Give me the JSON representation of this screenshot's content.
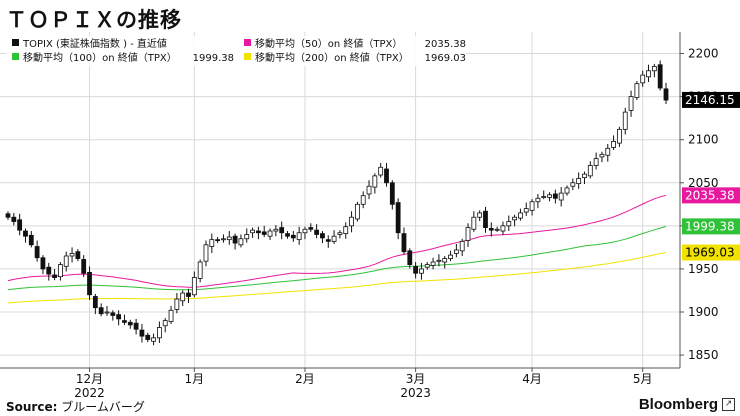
{
  "page": {
    "title": "ＴＯＰＩＸの推移",
    "source_label": "Source:",
    "source_text": "ブルームバーグ",
    "brand": "Bloomberg"
  },
  "chart_data": {
    "type": "candlestick",
    "title": "ＴＯＰＩＸの推移",
    "ylim": [
      1835,
      2225
    ],
    "yticks": [
      1850,
      1900,
      1950,
      2000,
      2050,
      2100,
      2150,
      2200
    ],
    "grid": true,
    "x_ticks": [
      {
        "label": "12月",
        "sub": "2022",
        "index": 14
      },
      {
        "label": "1月",
        "sub": "",
        "index": 32
      },
      {
        "label": "2月",
        "sub": "",
        "index": 51
      },
      {
        "label": "3月",
        "sub": "2023",
        "index": 70
      },
      {
        "label": "4月",
        "sub": "",
        "index": 90
      },
      {
        "label": "5月",
        "sub": "",
        "index": 109
      }
    ],
    "legend": [
      {
        "name": "TOPIX (東証株価指数 ) - 直近値",
        "value": "",
        "color": "#111111"
      },
      {
        "name": "移動平均（50）on 終値（TPX）",
        "value": "2035.38",
        "color": "#e8199f"
      },
      {
        "name": "移動平均（100）on 終値（TPX）",
        "value": "1999.38",
        "color": "#2fc238"
      },
      {
        "name": "移動平均（200）on 終値（TPX）",
        "value": "1969.03",
        "color": "#f2e200"
      }
    ],
    "last_values": [
      {
        "label": "2146.15",
        "value": 2146.15,
        "bg": "#000000",
        "fg": "#ffffff"
      },
      {
        "label": "2035.38",
        "value": 2035.38,
        "bg": "#e8199f",
        "fg": "#ffffff"
      },
      {
        "label": "1999.38",
        "value": 1999.38,
        "bg": "#2fc238",
        "fg": "#ffffff"
      },
      {
        "label": "1969.03",
        "value": 1969.03,
        "bg": "#f2e200",
        "fg": "#000000"
      }
    ],
    "closes": [
      2010,
      2005,
      1995,
      1988,
      1978,
      1963,
      1950,
      1944,
      1940,
      1955,
      1965,
      1968,
      1962,
      1945,
      1920,
      1905,
      1898,
      1900,
      1896,
      1892,
      1888,
      1885,
      1880,
      1872,
      1868,
      1870,
      1882,
      1890,
      1902,
      1915,
      1922,
      1918,
      1940,
      1958,
      1978,
      1984,
      1983,
      1985,
      1987,
      1980,
      1985,
      1990,
      1995,
      1992,
      1990,
      1994,
      1996,
      1992,
      1988,
      1986,
      1992,
      1996,
      1996,
      1990,
      1986,
      1982,
      1988,
      1992,
      1999,
      2010,
      2025,
      2035,
      2046,
      2058,
      2068,
      2050,
      2025,
      1992,
      1970,
      1955,
      1945,
      1950,
      1955,
      1958,
      1960,
      1962,
      1966,
      1972,
      1982,
      1998,
      2010,
      2015,
      1998,
      1995,
      1996,
      2000,
      2005,
      2010,
      2015,
      2020,
      2028,
      2032,
      2034,
      2036,
      2032,
      2038,
      2044,
      2050,
      2055,
      2060,
      2070,
      2078,
      2083,
      2090,
      2098,
      2112,
      2132,
      2150,
      2165,
      2175,
      2180,
      2185,
      2160,
      2146
    ]
  }
}
